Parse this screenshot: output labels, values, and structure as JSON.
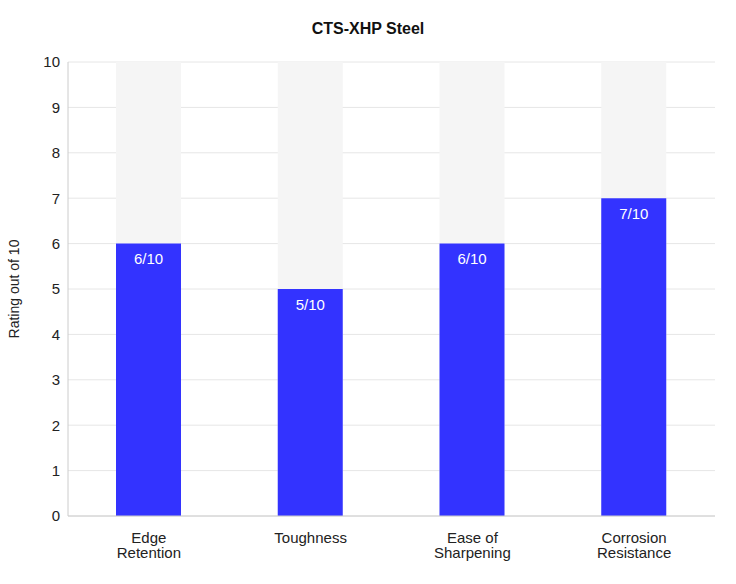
{
  "chart_data": {
    "type": "bar",
    "title": "CTS-XHP Steel",
    "y_label": "Rating out of 10",
    "categories": [
      "Edge Retention",
      "Toughness",
      "Ease of Sharpening",
      "Corrosion Resistance"
    ],
    "values": [
      6,
      5,
      6,
      7
    ],
    "value_labels": [
      "6/10",
      "5/10",
      "6/10",
      "7/10"
    ],
    "color": "#3333ff",
    "ylim": [
      0,
      10
    ],
    "yticks": [
      0,
      1,
      2,
      3,
      4,
      5,
      6,
      7,
      8,
      9,
      10
    ],
    "grid": true,
    "data_labels": true
  }
}
